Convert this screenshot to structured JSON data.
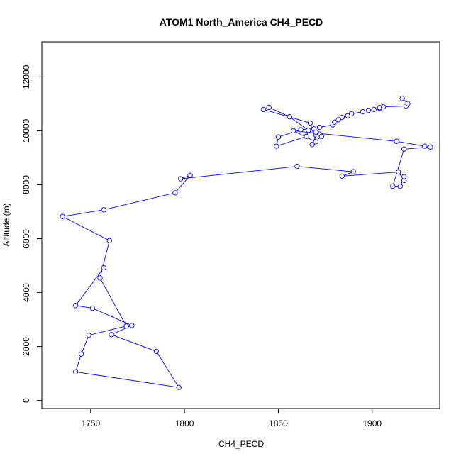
{
  "chart_data": {
    "type": "line",
    "title": "ATOM1 North_America CH4_PECD",
    "xlabel": "CH4_PECD",
    "ylabel": "Altitude (m)",
    "xlim": [
      1724,
      1936
    ],
    "ylim": [
      -300,
      13300
    ],
    "xticks": [
      1750,
      1800,
      1850,
      1900
    ],
    "yticks": [
      0,
      2000,
      4000,
      6000,
      8000,
      10000,
      12000
    ],
    "marker": "open-circle",
    "line_color": "#0000ff",
    "grid": false,
    "x": [
      1757,
      1742,
      1751,
      1772,
      1761,
      1785,
      1797,
      1742,
      1745,
      1749,
      1769,
      1755,
      1760,
      1735,
      1757,
      1795,
      1803,
      1798,
      1860,
      1890,
      1884,
      1914,
      1917,
      1917,
      1915,
      1911,
      1917,
      1931,
      1928,
      1913,
      1858,
      1870,
      1867,
      1842,
      1845,
      1856,
      1866,
      1865,
      1849,
      1850,
      1862,
      1869,
      1870,
      1872,
      1873,
      1868,
      1872,
      1879,
      1880,
      1882,
      1884,
      1887,
      1889,
      1895,
      1898,
      1901,
      1904,
      1904,
      1906,
      1918,
      1919,
      1916
    ],
    "y": [
      4920,
      3520,
      3420,
      2780,
      2440,
      1820,
      480,
      1060,
      1720,
      2420,
      2760,
      4540,
      5930,
      6820,
      7070,
      7700,
      8350,
      8220,
      8680,
      8480,
      8320,
      8470,
      8160,
      8300,
      7940,
      7950,
      9320,
      9400,
      9430,
      9610,
      10000,
      9590,
      10290,
      10790,
      10870,
      10520,
      10020,
      9790,
      9430,
      9770,
      10040,
      10070,
      9950,
      9880,
      9790,
      9490,
      10130,
      10220,
      10320,
      10410,
      10500,
      10560,
      10630,
      10710,
      10760,
      10790,
      10830,
      10860,
      10890,
      10920,
      11010,
      11200
    ]
  }
}
